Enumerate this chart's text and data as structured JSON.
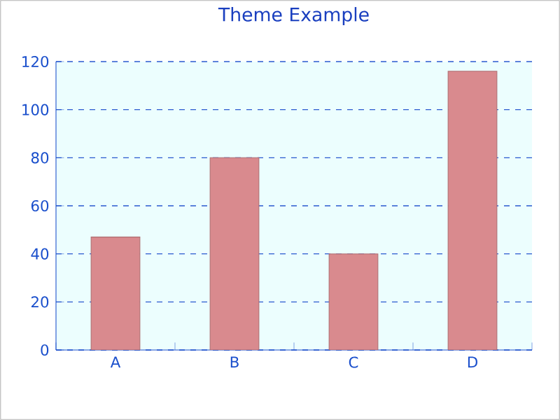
{
  "chart_data": {
    "type": "bar",
    "title": "Theme Example",
    "categories": [
      "A",
      "B",
      "C",
      "D"
    ],
    "values": [
      47,
      80,
      40,
      116
    ],
    "color": "#d98a8e",
    "ylim": [
      0,
      120
    ],
    "yticks": [
      0,
      20,
      40,
      60,
      80,
      100,
      120
    ],
    "grid": "y"
  }
}
